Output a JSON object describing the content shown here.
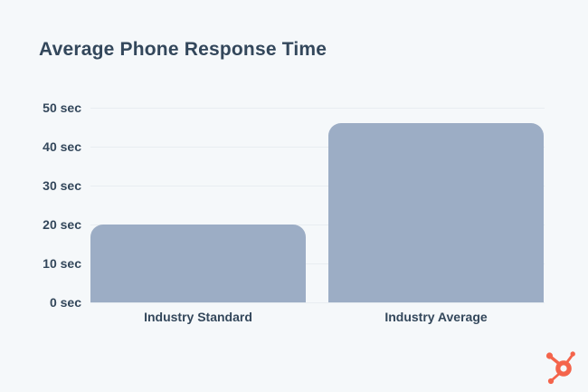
{
  "chart": {
    "title": "Average Phone Response Time"
  },
  "chart_data": {
    "type": "bar",
    "title": "Average Phone Response Time",
    "categories": [
      "Industry Standard",
      "Industry Average"
    ],
    "values": [
      20,
      46
    ],
    "unit": "sec",
    "xlabel": "",
    "ylabel": "",
    "ylim": [
      0,
      50
    ],
    "yticks": [
      0,
      10,
      20,
      30,
      40,
      50
    ],
    "ytick_labels": [
      "0 sec",
      "10 sec",
      "20 sec",
      "30 sec",
      "40 sec",
      "50 sec"
    ],
    "grid": true,
    "legend": false
  },
  "colors": {
    "background": "#f5f8fa",
    "bar": "#9cadc5",
    "text": "#33475b",
    "gridline": "#e8edf1",
    "logo": "#f4644b"
  },
  "icons": {
    "brand_logo": "hubspot-sprocket-icon"
  }
}
